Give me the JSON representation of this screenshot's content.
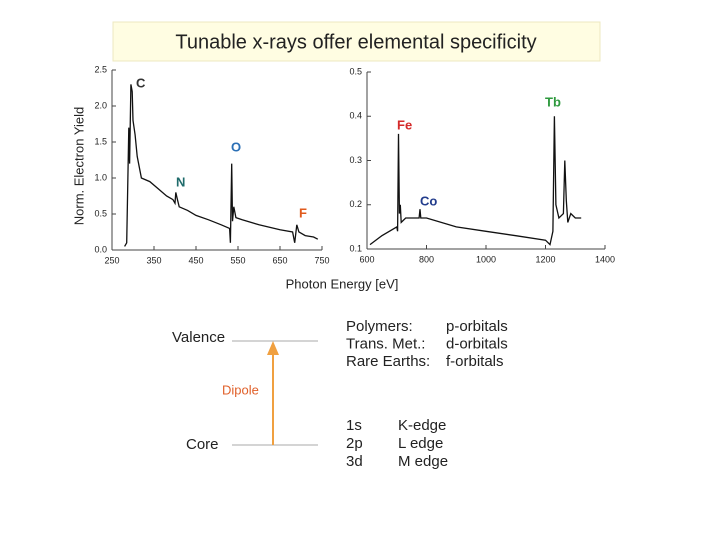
{
  "title": "Tunable x-rays offer elemental specificity",
  "chart_data": [
    {
      "type": "line",
      "ylabel": "Norm. Electron Yield",
      "color": "#111111",
      "xlim": [
        250,
        750
      ],
      "xticks": [
        250,
        350,
        450,
        550,
        650,
        750
      ],
      "ylim": [
        0,
        2.5
      ],
      "yticks": [
        {
          "value": 0,
          "label": "0.0"
        },
        0.5,
        {
          "value": 1,
          "label": "1.0"
        },
        1.5,
        {
          "value": 2,
          "label": "2.0"
        },
        2.5
      ],
      "x": [
        280,
        285,
        290,
        292,
        295,
        298,
        300,
        305,
        310,
        320,
        340,
        360,
        380,
        395,
        400,
        402,
        405,
        410,
        430,
        450,
        480,
        510,
        530,
        532,
        535,
        537,
        540,
        545,
        560,
        600,
        650,
        680,
        685,
        690,
        695,
        710,
        730,
        740
      ],
      "values": [
        0.05,
        0.1,
        1.7,
        1.2,
        2.3,
        2.2,
        1.8,
        1.6,
        1.3,
        1.0,
        0.95,
        0.85,
        0.75,
        0.7,
        0.65,
        0.8,
        0.72,
        0.6,
        0.55,
        0.48,
        0.42,
        0.35,
        0.3,
        0.1,
        1.2,
        0.4,
        0.6,
        0.45,
        0.42,
        0.35,
        0.28,
        0.25,
        0.1,
        0.35,
        0.25,
        0.2,
        0.18,
        0.15
      ],
      "annotations": [
        {
          "text": "C",
          "color": "#333333"
        },
        {
          "text": "O",
          "color": "#2a6fb5"
        },
        {
          "text": "N",
          "color": "#1f6b6b"
        },
        {
          "text": "F",
          "color": "#e05a1c"
        }
      ]
    },
    {
      "type": "line",
      "color": "#111111",
      "xlim": [
        600,
        1400
      ],
      "xticks": [
        600,
        800,
        1000,
        1200,
        1400
      ],
      "ylim": [
        0.1,
        0.5
      ],
      "yticks": [
        0.1,
        0.2,
        0.3,
        0.4,
        0.5
      ],
      "x": [
        610,
        650,
        700,
        703,
        706,
        709,
        712,
        715,
        730,
        760,
        775,
        778,
        781,
        800,
        900,
        1000,
        1100,
        1200,
        1215,
        1225,
        1230,
        1235,
        1245,
        1260,
        1265,
        1270,
        1275,
        1285,
        1300,
        1320
      ],
      "values": [
        0.11,
        0.13,
        0.15,
        0.14,
        0.36,
        0.18,
        0.2,
        0.16,
        0.17,
        0.17,
        0.17,
        0.19,
        0.17,
        0.17,
        0.15,
        0.14,
        0.13,
        0.12,
        0.11,
        0.14,
        0.4,
        0.2,
        0.17,
        0.18,
        0.3,
        0.21,
        0.16,
        0.18,
        0.17,
        0.17
      ],
      "annotations": [
        {
          "text": "Fe",
          "color": "#d42a2a"
        },
        {
          "text": "Co",
          "color": "#223c8c"
        },
        {
          "text": "Tb",
          "color": "#2e9a3e"
        }
      ]
    }
  ],
  "x_label": "Photon Energy [eV]",
  "diagram": {
    "levels": [
      "Valence",
      "Core"
    ],
    "transition": "Dipole",
    "orbitals": [
      [
        "Polymers:",
        "p-orbitals"
      ],
      [
        "Trans. Met.:",
        "d-orbitals"
      ],
      [
        "Rare Earths:",
        "f-orbitals"
      ]
    ],
    "edges": [
      [
        "1s",
        "K-edge"
      ],
      [
        "2p",
        "L edge"
      ],
      [
        "3d",
        "M edge"
      ]
    ]
  }
}
